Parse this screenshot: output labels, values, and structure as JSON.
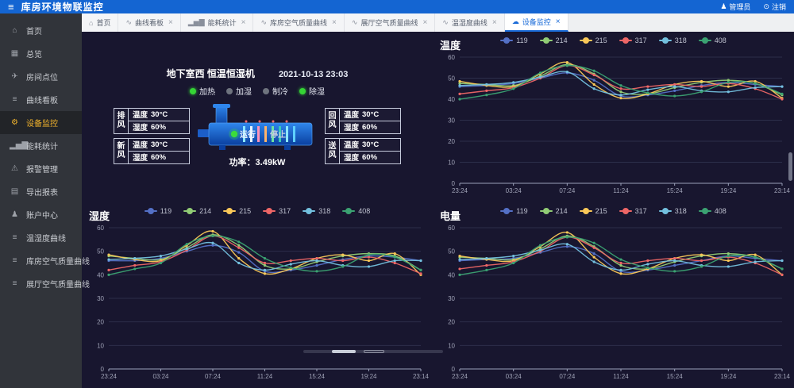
{
  "app": {
    "title": "库房环境物联监控",
    "user_label": "管理员",
    "logout_label": "注销"
  },
  "sidebar": {
    "items": [
      {
        "label": "首页",
        "icon": "home-icon",
        "active": false
      },
      {
        "label": "总览",
        "icon": "overview-icon",
        "active": false
      },
      {
        "label": "房间点位",
        "icon": "room-icon",
        "active": false
      },
      {
        "label": "曲线看板",
        "icon": "lines-icon",
        "active": false
      },
      {
        "label": "设备监控",
        "icon": "device-icon",
        "active": true
      },
      {
        "label": "能耗统计",
        "icon": "stats-icon",
        "active": false
      },
      {
        "label": "报警管理",
        "icon": "alarm-icon",
        "active": false
      },
      {
        "label": "导出报表",
        "icon": "export-icon",
        "active": false
      },
      {
        "label": "账户中心",
        "icon": "user-icon",
        "active": false
      },
      {
        "label": "温湿度曲线",
        "icon": "lines-icon",
        "active": false
      },
      {
        "label": "库房空气质量曲线",
        "icon": "lines-icon",
        "active": false
      },
      {
        "label": "展厅空气质量曲线",
        "icon": "lines-icon",
        "active": false
      }
    ]
  },
  "tabs": [
    {
      "label": "首页",
      "icon": "home-icon",
      "closable": false,
      "active": false
    },
    {
      "label": "曲线看板",
      "icon": "curve-icon",
      "closable": true,
      "active": false
    },
    {
      "label": "能耗统计",
      "icon": "stats-icon",
      "closable": true,
      "active": false
    },
    {
      "label": "库房空气质量曲线",
      "icon": "curve-icon",
      "closable": true,
      "active": false
    },
    {
      "label": "展厅空气质量曲线",
      "icon": "curve-icon",
      "closable": true,
      "active": false
    },
    {
      "label": "温湿度曲线",
      "icon": "curve-icon",
      "closable": true,
      "active": false
    },
    {
      "label": "设备监控",
      "icon": "cloud-icon",
      "closable": true,
      "active": true
    }
  ],
  "device_panel": {
    "title": "地下室西 恒温恒湿机",
    "datetime": "2021-10-13 23:03",
    "modes": [
      {
        "label": "加热",
        "on": true
      },
      {
        "label": "加湿",
        "on": false
      },
      {
        "label": "制冷",
        "on": false
      },
      {
        "label": "除湿",
        "on": true
      }
    ],
    "vents_left": [
      {
        "name": "排风",
        "temp_label": "温度",
        "temp": "30°C",
        "hum_label": "湿度",
        "hum": "60%"
      },
      {
        "name": "新风",
        "temp_label": "温度",
        "temp": "30°C",
        "hum_label": "湿度",
        "hum": "60%"
      }
    ],
    "vents_right": [
      {
        "name": "回风",
        "temp_label": "温度",
        "temp": "30°C",
        "hum_label": "湿度",
        "hum": "60%"
      },
      {
        "name": "送风",
        "temp_label": "温度",
        "temp": "30°C",
        "hum_label": "湿度",
        "hum": "60%"
      }
    ],
    "run_label": "运行",
    "stop_label": "停止",
    "power_label": "功率：",
    "power_value": "3.49kW"
  },
  "chart_data": [
    {
      "type": "line",
      "title": "温度",
      "smooth": true,
      "grid": true,
      "legend_position": "top-center",
      "xlabel": "",
      "ylabel": "",
      "x": [
        "23:24",
        "03:24",
        "07:24",
        "11:24",
        "15:24",
        "19:24",
        "23:14"
      ],
      "ylim": [
        0,
        60
      ],
      "yticks": [
        0,
        10,
        20,
        30,
        40,
        50,
        60
      ],
      "series": [
        {
          "name": "119",
          "color": "#5470c6",
          "values": [
            46,
            46.5,
            47.5,
            50,
            52.5,
            49,
            41.5,
            42,
            44,
            46.5,
            48,
            47,
            46
          ]
        },
        {
          "name": "214",
          "color": "#91cc75",
          "values": [
            47.5,
            47,
            46.5,
            51,
            56.5,
            52,
            43.5,
            42.5,
            45.5,
            48,
            49,
            47.5,
            42
          ]
        },
        {
          "name": "215",
          "color": "#fac858",
          "values": [
            48.5,
            46.5,
            46,
            52,
            57.5,
            47,
            40.5,
            42.5,
            47,
            48.5,
            46,
            48.5,
            40.5
          ]
        },
        {
          "name": "317",
          "color": "#ee6666",
          "values": [
            42.5,
            44,
            45.5,
            50,
            56,
            51.5,
            45,
            46,
            47,
            46,
            47.5,
            45,
            40
          ]
        },
        {
          "name": "318",
          "color": "#73c0de",
          "values": [
            46.5,
            47,
            48,
            50.5,
            53,
            45,
            42,
            44.5,
            46,
            44,
            43.5,
            45.5,
            46
          ]
        },
        {
          "name": "408",
          "color": "#3ba272",
          "values": [
            40,
            42,
            45,
            52.5,
            56,
            53.5,
            46.5,
            43,
            41.5,
            43.5,
            48,
            47.5,
            42.5
          ]
        }
      ]
    },
    {
      "type": "line",
      "title": "湿度",
      "smooth": true,
      "grid": true,
      "legend_position": "top-center",
      "xlabel": "",
      "ylabel": "",
      "x": [
        "23:24",
        "03:24",
        "07:24",
        "11:24",
        "15:24",
        "19:24",
        "23:14"
      ],
      "ylim": [
        0,
        60
      ],
      "yticks": [
        0,
        10,
        20,
        30,
        40,
        50,
        60
      ],
      "series": [
        {
          "name": "119",
          "color": "#5470c6",
          "values": [
            46,
            46,
            47,
            50,
            52.5,
            49.5,
            41.5,
            42,
            44,
            46.5,
            48,
            47.5,
            46
          ]
        },
        {
          "name": "214",
          "color": "#91cc75",
          "values": [
            48,
            47,
            46.5,
            51.5,
            57,
            52.5,
            44,
            42.5,
            45.5,
            48,
            49,
            48,
            42
          ]
        },
        {
          "name": "215",
          "color": "#fac858",
          "values": [
            48.5,
            46.5,
            46,
            52.5,
            58.5,
            47,
            40.5,
            42.5,
            47,
            48.5,
            46,
            49,
            40
          ]
        },
        {
          "name": "317",
          "color": "#ee6666",
          "values": [
            42,
            44,
            45.5,
            50.5,
            56.5,
            51.5,
            45,
            46,
            47,
            46,
            47.5,
            45,
            40.5
          ]
        },
        {
          "name": "318",
          "color": "#73c0de",
          "values": [
            46.5,
            47,
            48,
            51,
            53.5,
            45,
            42,
            44.5,
            46,
            44,
            43.5,
            46,
            46
          ]
        },
        {
          "name": "408",
          "color": "#3ba272",
          "values": [
            40,
            42.5,
            45,
            53,
            56.5,
            54,
            47,
            43,
            41.5,
            43.5,
            48.5,
            47.5,
            42
          ]
        }
      ]
    },
    {
      "type": "line",
      "title": "电量",
      "smooth": true,
      "grid": true,
      "legend_position": "top-center",
      "xlabel": "",
      "ylabel": "",
      "x": [
        "23:24",
        "03:24",
        "07:24",
        "11:24",
        "15:24",
        "19:24",
        "23:14"
      ],
      "ylim": [
        0,
        60
      ],
      "yticks": [
        0,
        10,
        20,
        30,
        40,
        50,
        60
      ],
      "series": [
        {
          "name": "119",
          "color": "#5470c6",
          "values": [
            46,
            46.5,
            47,
            49.5,
            52,
            49,
            41.5,
            42,
            44,
            46,
            48,
            47,
            46
          ]
        },
        {
          "name": "214",
          "color": "#91cc75",
          "values": [
            47.5,
            47,
            46.5,
            51,
            56.5,
            52,
            44,
            42.5,
            45.5,
            48,
            49,
            47.5,
            42.5
          ]
        },
        {
          "name": "215",
          "color": "#fac858",
          "values": [
            48,
            46.5,
            46,
            52,
            58,
            47.5,
            40.5,
            42.5,
            47,
            48.5,
            46,
            48.5,
            40
          ]
        },
        {
          "name": "317",
          "color": "#ee6666",
          "values": [
            42.5,
            44,
            45.5,
            50,
            56,
            51.5,
            45,
            46,
            47,
            46,
            47.5,
            45,
            40
          ]
        },
        {
          "name": "318",
          "color": "#73c0de",
          "values": [
            46.5,
            47,
            48,
            50.5,
            53,
            45.5,
            42,
            44.5,
            46,
            44,
            43.5,
            45.5,
            46
          ]
        },
        {
          "name": "408",
          "color": "#3ba272",
          "values": [
            40,
            42,
            45,
            52.5,
            56,
            53.5,
            46.5,
            43,
            41.5,
            43.5,
            48,
            47.5,
            42.5
          ]
        }
      ]
    }
  ],
  "colors": {
    "topbar": "#1465d2",
    "accent_blue": "#1a6bd8",
    "sidebar_bg": "#31343a",
    "active_yellow": "#f2b32c",
    "main_bg": "#18162f",
    "on_green": "#35d435",
    "off_gray": "#6e737e",
    "series": [
      "#5470c6",
      "#91cc75",
      "#fac858",
      "#ee6666",
      "#73c0de",
      "#3ba272"
    ]
  }
}
